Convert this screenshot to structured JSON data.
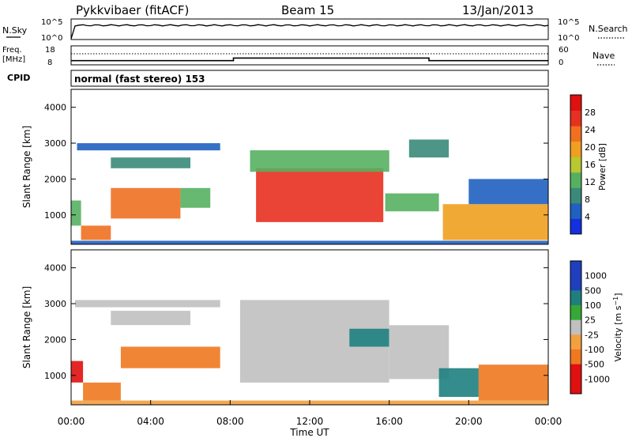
{
  "header": {
    "station": "Pykkvibaer (fitACF)",
    "beam": "Beam 15",
    "date": "13/Jan/2013"
  },
  "status_panels": {
    "nsky_label": "N.Sky",
    "nsky_ticks": [
      "10^5",
      "10^0"
    ],
    "nsearch_label": "N.Search",
    "nsearch_ticks": [
      "10^5",
      "10^0"
    ],
    "freq_label_line1": "Freq.",
    "freq_label_line2": "[MHz]",
    "freq_ticks": [
      "18",
      "8"
    ],
    "nave_label": "Nave",
    "nave_ticks": [
      "60",
      "0"
    ],
    "cpid_label": "CPID",
    "cpid_text": "normal (fast stereo) 153",
    "freq_mhz": [
      {
        "from": "00:00",
        "to": "08:10",
        "value": 10.2
      },
      {
        "from": "08:10",
        "to": "18:00",
        "value": 11.6
      },
      {
        "from": "18:00",
        "to": "24:00",
        "value": 10.2
      }
    ]
  },
  "chart_data": [
    {
      "type": "heatmap",
      "parameter": "Power",
      "ylabel": "Slant Range [km]",
      "ylim": [
        180,
        4500
      ],
      "yticks": [
        "1000",
        "2000",
        "3000",
        "4000"
      ],
      "xlim": [
        "00:00",
        "24:00"
      ],
      "colorbar_label": "Power [dB]",
      "colorbar_ticks": [
        "4",
        "8",
        "12",
        "16",
        "20",
        "24",
        "28"
      ],
      "colorbar_range": [
        0,
        32
      ],
      "regions": [
        {
          "t0": 0.0,
          "t1": 0.5,
          "r0": 700,
          "r1": 1400,
          "level": 12
        },
        {
          "t0": 0.5,
          "t1": 2.0,
          "r0": 300,
          "r1": 700,
          "level": 22
        },
        {
          "t0": 2.0,
          "t1": 5.5,
          "r0": 900,
          "r1": 1750,
          "level": 22
        },
        {
          "t0": 5.5,
          "t1": 7.0,
          "r0": 1200,
          "r1": 1750,
          "level": 14
        },
        {
          "t0": 2.0,
          "t1": 6.0,
          "r0": 2300,
          "r1": 2600,
          "level": 8
        },
        {
          "t0": 0.3,
          "t1": 7.5,
          "r0": 2800,
          "r1": 3000,
          "level": 6
        },
        {
          "t0": 9.3,
          "t1": 15.7,
          "r0": 800,
          "r1": 2300,
          "level": 25
        },
        {
          "t0": 9.0,
          "t1": 16.0,
          "r0": 2200,
          "r1": 2800,
          "level": 12
        },
        {
          "t0": 15.8,
          "t1": 18.5,
          "r0": 1100,
          "r1": 1600,
          "level": 14
        },
        {
          "t0": 17.0,
          "t1": 19.0,
          "r0": 2600,
          "r1": 3100,
          "level": 10
        },
        {
          "t0": 18.7,
          "t1": 24.0,
          "r0": 300,
          "r1": 1300,
          "level": 20
        },
        {
          "t0": 20.0,
          "t1": 24.0,
          "r0": 1300,
          "r1": 2000,
          "level": 6
        },
        {
          "t0": 0.0,
          "t1": 24.0,
          "r0": 180,
          "r1": 280,
          "level": 6
        }
      ]
    },
    {
      "type": "heatmap",
      "parameter": "Velocity",
      "ylabel": "Slant Range [km]",
      "ylim": [
        180,
        4500
      ],
      "yticks": [
        "1000",
        "2000",
        "3000",
        "4000"
      ],
      "xlim": [
        "00:00",
        "24:00"
      ],
      "xticks": [
        "00:00",
        "04:00",
        "08:00",
        "12:00",
        "16:00",
        "20:00",
        "00:00"
      ],
      "xlabel": "Time UT",
      "colorbar_label": "Velocity [m s^-1]",
      "colorbar_ticks": [
        "1000",
        "500",
        "100",
        "25",
        "-25",
        "-100",
        "-500",
        "-1000"
      ],
      "regions": [
        {
          "t0": 0.0,
          "t1": 0.6,
          "r0": 800,
          "r1": 1400,
          "level": -500
        },
        {
          "t0": 0.6,
          "t1": 2.5,
          "r0": 300,
          "r1": 800,
          "level": -300
        },
        {
          "t0": 2.5,
          "t1": 7.5,
          "r0": 1200,
          "r1": 1800,
          "level": -150
        },
        {
          "t0": 2.0,
          "t1": 6.0,
          "r0": 2400,
          "r1": 2800,
          "level": 0
        },
        {
          "t0": 0.2,
          "t1": 7.5,
          "r0": 2900,
          "r1": 3100,
          "level": 0
        },
        {
          "t0": 8.5,
          "t1": 16.0,
          "r0": 800,
          "r1": 3100,
          "level": 0
        },
        {
          "t0": 14.0,
          "t1": 16.0,
          "r0": 1800,
          "r1": 2300,
          "level": 200
        },
        {
          "t0": 16.0,
          "t1": 19.0,
          "r0": 900,
          "r1": 2400,
          "level": 0
        },
        {
          "t0": 18.5,
          "t1": 20.5,
          "r0": 400,
          "r1": 1200,
          "level": 300
        },
        {
          "t0": 20.5,
          "t1": 24.0,
          "r0": 300,
          "r1": 1300,
          "level": -200
        },
        {
          "t0": 0.0,
          "t1": 24.0,
          "r0": 180,
          "r1": 300,
          "level": -30
        }
      ]
    }
  ],
  "colors": {
    "power_scale": [
      "#1230e0",
      "#2060c0",
      "#3a8a7a",
      "#56b060",
      "#b8c830",
      "#f0a020",
      "#f07020",
      "#e83020",
      "#e01010"
    ],
    "velocity_scale": [
      "#1f3fbf",
      "#1f7f7f",
      "#36a836",
      "#7fd35f",
      "#c0c0c0",
      "#f2a040",
      "#f07820",
      "#e84818",
      "#e01010"
    ],
    "trace": "#000000"
  }
}
